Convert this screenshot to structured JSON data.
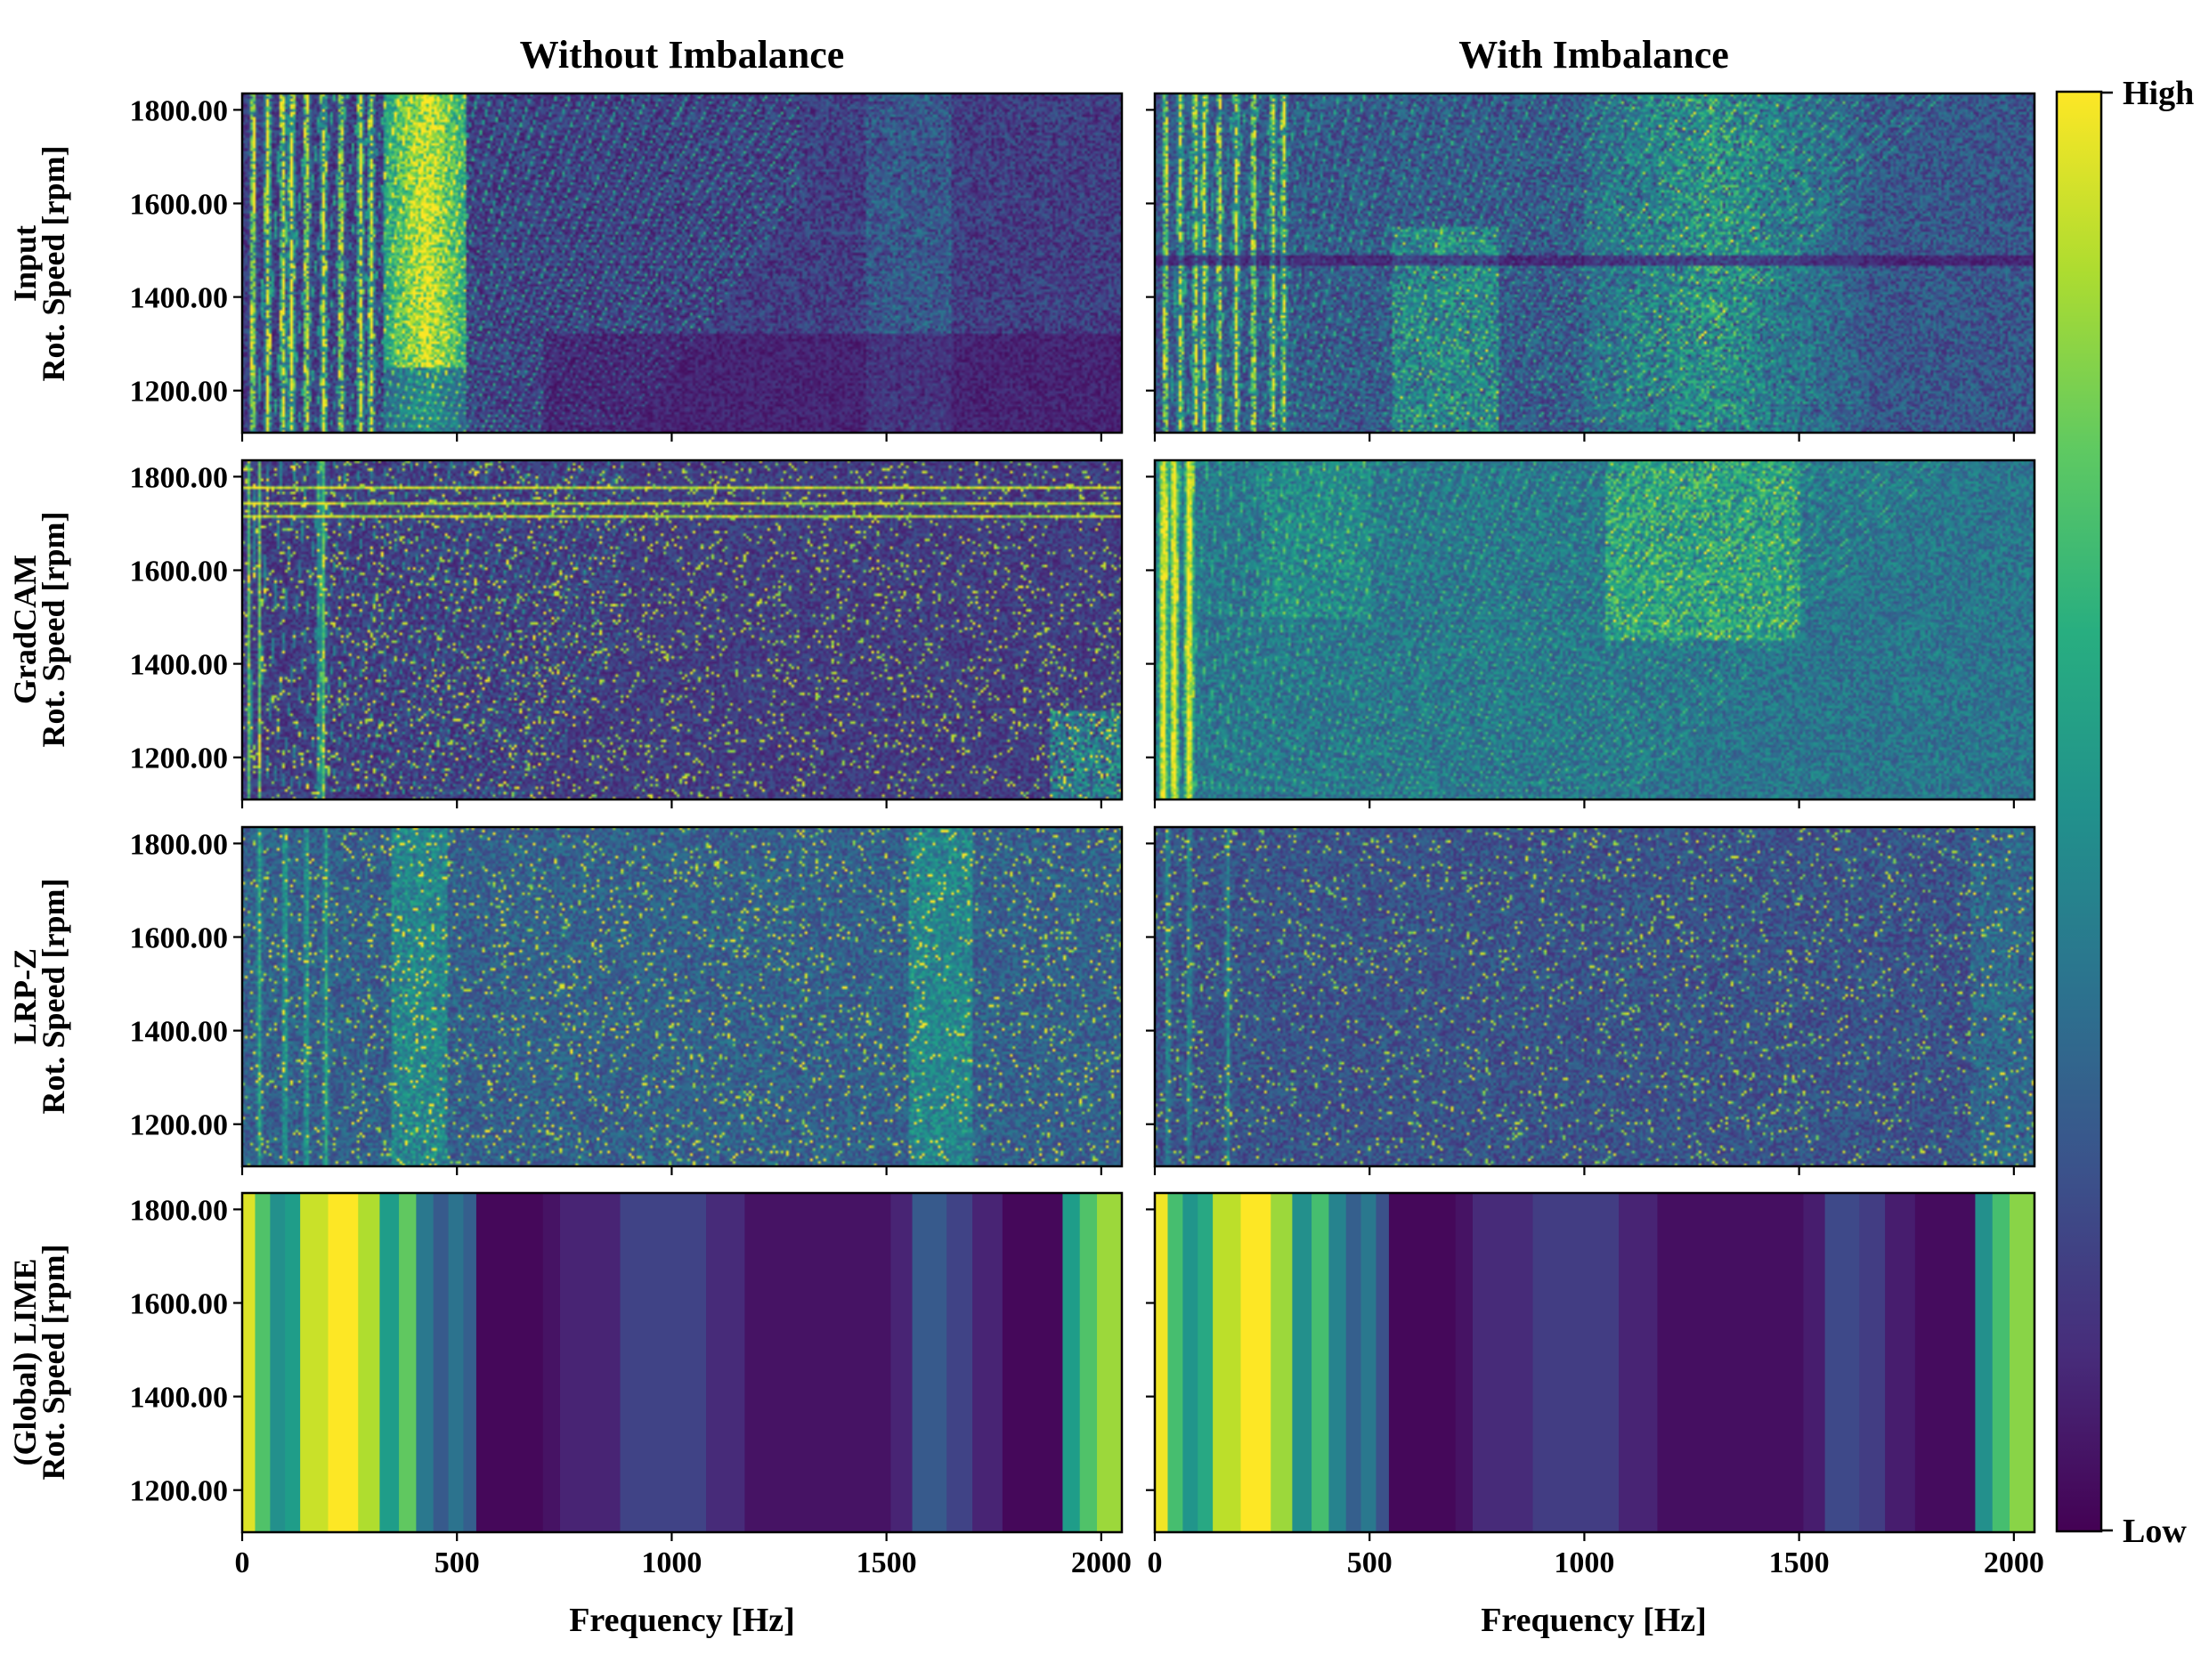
{
  "chart_data": {
    "type": "heatmap",
    "layout": "4 rows x 2 columns of spectrogram / attribution heatmaps",
    "column_titles": [
      "Without Imbalance",
      "With Imbalance"
    ],
    "row_labels": [
      {
        "method": "Input",
        "ylabel": "Rot. Speed [rpm]"
      },
      {
        "method": "GradCAM",
        "ylabel": "Rot. Speed [rpm]"
      },
      {
        "method": "LRP-Z",
        "ylabel": "Rot. Speed [rpm]"
      },
      {
        "method": "(Global) LIME",
        "ylabel": "Rot. Speed [rpm]"
      }
    ],
    "xlabel": "Frequency [Hz]",
    "xlim": [
      0,
      2048
    ],
    "xticks": [
      0,
      500,
      1000,
      1500,
      2000
    ],
    "xtick_labels": [
      "0",
      "500",
      "1000",
      "1500",
      "2000"
    ],
    "ylim": [
      1110,
      1835
    ],
    "yticks": [
      1200,
      1400,
      1600,
      1800
    ],
    "ytick_labels": [
      "1200.00",
      "1400.00",
      "1600.00",
      "1800.00"
    ],
    "colormap": "viridis",
    "colorbar": {
      "high_label": "High",
      "low_label": "Low",
      "range": [
        0,
        1
      ]
    },
    "lime_band_edges_hz": [
      0,
      30,
      65,
      100,
      135,
      200,
      270,
      320,
      365,
      405,
      445,
      480,
      515,
      545,
      700,
      740,
      880,
      1080,
      1170,
      1510,
      1560,
      1640,
      1700,
      1770,
      1910,
      1950,
      1990,
      2048
    ],
    "lime_band_values_without_imbalance": [
      0.95,
      0.72,
      0.5,
      0.55,
      0.92,
      1.0,
      0.88,
      0.55,
      0.75,
      0.4,
      0.28,
      0.38,
      0.3,
      0.02,
      0.05,
      0.1,
      0.2,
      0.12,
      0.05,
      0.1,
      0.28,
      0.2,
      0.1,
      0.02,
      0.55,
      0.72,
      0.85
    ],
    "lime_band_values_with_imbalance": [
      0.98,
      0.7,
      0.52,
      0.6,
      0.9,
      1.0,
      0.85,
      0.5,
      0.7,
      0.45,
      0.3,
      0.4,
      0.25,
      0.02,
      0.05,
      0.12,
      0.18,
      0.1,
      0.04,
      0.08,
      0.22,
      0.18,
      0.08,
      0.03,
      0.5,
      0.7,
      0.82
    ],
    "spectrogram_features": {
      "input_without": {
        "base": 0.06,
        "low_freq_lines_hz": [
          25,
          60,
          95,
          115,
          150,
          190,
          230,
          275,
          300
        ],
        "bright_region_hz": [
          350,
          500
        ],
        "diagonal_orders": 8
      },
      "input_with": {
        "base": 0.12,
        "low_freq_lines_hz": [
          25,
          60,
          95,
          115,
          150,
          190,
          230,
          275,
          300
        ],
        "bright_region_hz": [
          1050,
          1600
        ],
        "diagonal_orders": 10
      },
      "gradcam_without": {
        "base": 0.08,
        "horizontal_lines_rpm": [
          1775,
          1745,
          1715
        ],
        "bright_corner_hz": [
          1880,
          2048
        ]
      },
      "gradcam_with": {
        "base": 0.25,
        "bright_region_hz": [
          1050,
          1500
        ],
        "low_freq_lines_hz": [
          20,
          45,
          80
        ]
      },
      "lrp_without": {
        "base": 0.18,
        "bands_hz": [
          [
            350,
            480
          ],
          [
            1550,
            1700
          ]
        ]
      },
      "lrp_with": {
        "base": 0.14,
        "bands_hz": [
          [
            1900,
            2048
          ]
        ]
      }
    }
  }
}
